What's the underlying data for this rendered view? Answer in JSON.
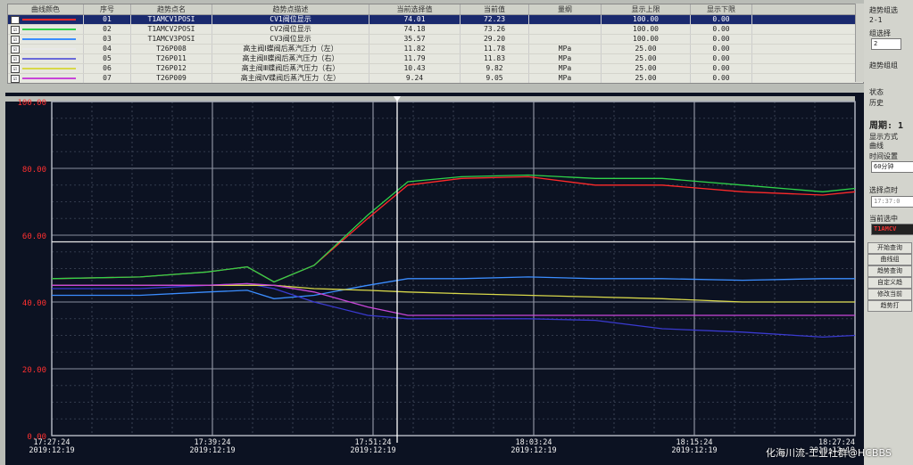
{
  "table": {
    "headers": [
      "曲线颜色",
      "序号",
      "趋势点名",
      "趋势点描述",
      "当前选择值",
      "当前值",
      "量纲",
      "显示上限",
      "显示下限"
    ],
    "rows": [
      {
        "checked": "☑",
        "color": "#ff2a2a",
        "no": "01",
        "tag": "T1AMCV1POSI",
        "desc": "CV1阀位显示",
        "sel": "74.01",
        "cur": "72.23",
        "unit": "",
        "hi": "100.00",
        "lo": "0.00",
        "selected": true
      },
      {
        "checked": "☑",
        "color": "#2fd24a",
        "no": "02",
        "tag": "T1AMCV2POSI",
        "desc": "CV2阀位显示",
        "sel": "74.18",
        "cur": "73.26",
        "unit": "",
        "hi": "100.00",
        "lo": "0.00"
      },
      {
        "checked": "☑",
        "color": "#3b8dff",
        "no": "03",
        "tag": "T1AMCV3POSI",
        "desc": "CV3阀位显示",
        "sel": "35.57",
        "cur": "29.20",
        "unit": "",
        "hi": "100.00",
        "lo": "0.00"
      },
      {
        "checked": "☑",
        "color": "#e8e8e8",
        "no": "04",
        "tag": "T26P008",
        "desc": "高主阀Ⅰ蝶阀后蒸汽压力（左）",
        "sel": "11.82",
        "cur": "11.78",
        "unit": "MPa",
        "hi": "25.00",
        "lo": "0.00"
      },
      {
        "checked": "☑",
        "color": "#6a6ad8",
        "no": "05",
        "tag": "T26P011",
        "desc": "高主阀Ⅱ蝶阀后蒸汽压力（右）",
        "sel": "11.79",
        "cur": "11.83",
        "unit": "MPa",
        "hi": "25.00",
        "lo": "0.00"
      },
      {
        "checked": "☑",
        "color": "#d8d84a",
        "no": "06",
        "tag": "T26P012",
        "desc": "高主阀Ⅲ蝶阀后蒸汽压力（右）",
        "sel": "10.43",
        "cur": "9.82",
        "unit": "MPa",
        "hi": "25.00",
        "lo": "0.00"
      },
      {
        "checked": "☑",
        "color": "#c846d8",
        "no": "07",
        "tag": "T26P009",
        "desc": "高主阀Ⅳ蝶阀后蒸汽压力（左）",
        "sel": "9.24",
        "cur": "9.05",
        "unit": "MPa",
        "hi": "25.00",
        "lo": "0.00"
      }
    ]
  },
  "sidebar": {
    "title": "趋势组选",
    "group_range": "2-1",
    "group_label": "组选择",
    "group_value": "2",
    "group_name": "趋势组组",
    "state_label": "状态",
    "state_option": "历史",
    "period_label": "周期: 1",
    "display_mode_label": "显示方式",
    "display_mode_option": "曲线",
    "time_setting_label": "时间设置",
    "time_value": "60分钟",
    "select_point_label": "选择点时",
    "select_point_value": "17:37:0",
    "current_select_label": "当前选中",
    "current_select_value": "T1AMCV",
    "buttons": [
      "开始查询",
      "曲线组",
      "趋势查询",
      "自定义趋",
      "修改当前",
      "趋势打"
    ]
  },
  "chart_data": {
    "type": "line",
    "ylim": [
      0,
      100
    ],
    "yticks": [
      "100.00",
      "80.00",
      "60.00",
      "40.00",
      "20.00",
      "0.00"
    ],
    "xticks": [
      {
        "time": "17:27:24",
        "date": "2019:12:19"
      },
      {
        "time": "17:39:24",
        "date": "2019:12:19"
      },
      {
        "time": "17:51:24",
        "date": "2019:12:19"
      },
      {
        "time": "18:03:24",
        "date": "2019:12:19"
      },
      {
        "time": "18:15:24",
        "date": "2019:12:19"
      },
      {
        "time": "18:27:24",
        "date": "2019:12:19"
      }
    ],
    "x": [
      "17:27:24",
      "17:34:00",
      "17:39:00",
      "17:42:00",
      "17:44:00",
      "17:47:00",
      "17:51:00",
      "17:54:00",
      "17:58:00",
      "18:03:00",
      "18:08:00",
      "18:13:00",
      "18:19:00",
      "18:25:00",
      "18:27:24"
    ],
    "series": [
      {
        "color": "#ff2a2a",
        "values": [
          47,
          47.5,
          49,
          50.5,
          46,
          51,
          65,
          75,
          77,
          77.5,
          75,
          75,
          73,
          72,
          73
        ]
      },
      {
        "color": "#2fd24a",
        "values": [
          47,
          47.5,
          49,
          50.5,
          46,
          51,
          66,
          76,
          77.5,
          78,
          77,
          77,
          75,
          73,
          74
        ]
      },
      {
        "color": "#3b8dff",
        "values": [
          42,
          42,
          43,
          43.5,
          41,
          42,
          45,
          47,
          47,
          47.5,
          47,
          47,
          46.5,
          47,
          47
        ]
      },
      {
        "color": "#e8e8e8",
        "values": [
          58,
          58,
          58,
          58,
          58,
          58,
          58,
          58,
          58,
          58,
          58,
          58,
          58,
          58,
          58
        ]
      },
      {
        "color": "#3a3ad0",
        "values": [
          44,
          44,
          45,
          45.5,
          44,
          40,
          36,
          35,
          35,
          35,
          34.5,
          32,
          31,
          29.5,
          30
        ]
      },
      {
        "color": "#d8d84a",
        "values": [
          45,
          45,
          45,
          45,
          45,
          44,
          43.5,
          43,
          42.5,
          42,
          41.5,
          41,
          40,
          40,
          40
        ]
      },
      {
        "color": "#c846d8",
        "values": [
          45,
          45,
          45,
          45.5,
          45,
          43,
          38.5,
          36,
          36,
          36,
          36,
          36,
          36,
          36,
          36
        ]
      }
    ]
  },
  "watermark": "化海川流-工业社群@HCBBS"
}
